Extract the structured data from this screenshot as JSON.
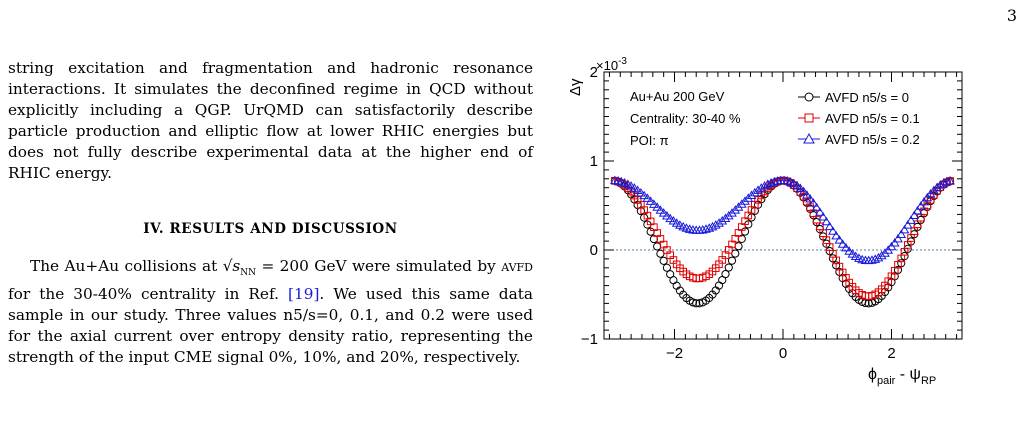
{
  "page_number": "3",
  "left_column": {
    "para1": "string excitation and fragmentation and hadronic resonance interactions. It simulates the deconfined regime in QCD without explicitly including a QGP. UrQMD can satisfactorily describe particle production and elliptic flow at lower RHIC energies but does not fully describe experimental data at the higher end of RHIC energy.",
    "heading": "IV.    RESULTS AND DISCUSSION",
    "para2_a": "The Au+Au collisions at",
    "para2_sqrt": "√s",
    "para2_sub": "NN",
    "para2_b": " = 200 GeV were simulated by",
    "para2_avfd": "avfd",
    "para2_c": "for the 30-40% centrality in Ref.",
    "para2_ref": "[19]",
    "para2_d": ". We used this same data sample in our study. Three values n5/s=0, 0.1, and 0.2 were used for the axial current over entropy density ratio, representing the strength of the input CME signal 0%, 10%, and 20%, respectively."
  },
  "chart_data": {
    "type": "scatter",
    "y_multiplier": "×10",
    "y_multiplier_exp": "-3",
    "ylabel": "Δγ",
    "xlabel": "ϕ",
    "xlabel_sub1": "pair",
    "xlabel_mid": " - ψ",
    "xlabel_sub2": "RP",
    "xlim": [
      -3.3,
      3.3
    ],
    "ylim": [
      -1.0,
      2.0
    ],
    "x_ticks": [
      {
        "value": -2,
        "label": "−2"
      },
      {
        "value": 0,
        "label": "0"
      },
      {
        "value": 2,
        "label": "2"
      }
    ],
    "y_ticks": [
      {
        "value": -1,
        "label": "−1"
      },
      {
        "value": 0,
        "label": "0"
      },
      {
        "value": 1,
        "label": "1"
      },
      {
        "value": 2,
        "label": "2"
      }
    ],
    "annotations": [
      "Au+Au 200 GeV",
      "Centrality: 30-40 %",
      "POI: π"
    ],
    "reference_line": 0,
    "series": [
      {
        "name": "AVFD n5/s = 0",
        "marker": "circle",
        "color": "#000000",
        "max": 0.78,
        "min_left": -0.6,
        "min_right": -0.6
      },
      {
        "name": "AVFD n5/s = 0.1",
        "marker": "square",
        "color": "#e00000",
        "max": 0.78,
        "min_left": -0.32,
        "min_right": -0.52
      },
      {
        "name": "AVFD n5/s = 0.2",
        "marker": "triangle",
        "color": "#1a1adb",
        "max": 0.78,
        "min_left": 0.22,
        "min_right": -0.12
      }
    ]
  }
}
